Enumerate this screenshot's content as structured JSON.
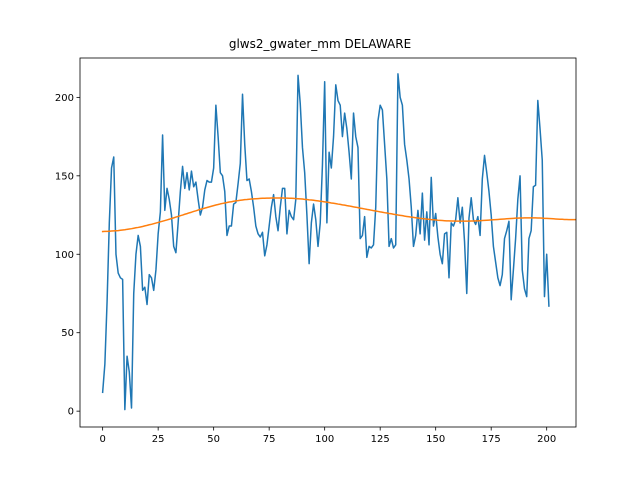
{
  "chart_data": {
    "type": "line",
    "title": "glws2_gwater_mm DELAWARE",
    "xlabel": "",
    "ylabel": "",
    "xlim": [
      -10.2,
      213.2
    ],
    "ylim": [
      -10.1,
      225.1
    ],
    "xticks": [
      0,
      25,
      50,
      75,
      100,
      125,
      150,
      175,
      200
    ],
    "yticks": [
      0,
      50,
      100,
      150,
      200
    ],
    "grid": false,
    "series": [
      {
        "color": "#1f77b4",
        "values": [
          12,
          30,
          70,
          120,
          155,
          162,
          100,
          88,
          85,
          84,
          1,
          35,
          25,
          2,
          75,
          100,
          112,
          105,
          77,
          79,
          68,
          87,
          85,
          77,
          90,
          113,
          127,
          176,
          128,
          142,
          135,
          125,
          105,
          101,
          120,
          140,
          156,
          142,
          152,
          141,
          153,
          143,
          146,
          135,
          125,
          130,
          141,
          147,
          146,
          146,
          155,
          195,
          175,
          152,
          150,
          140,
          112,
          118,
          118,
          132,
          133,
          145,
          158,
          202,
          170,
          147,
          148,
          140,
          130,
          118,
          113,
          111,
          114,
          99,
          106,
          118,
          130,
          138,
          124,
          115,
          130,
          142,
          142,
          113,
          128,
          124,
          122,
          135,
          214,
          196,
          168,
          152,
          125,
          94,
          120,
          132,
          122,
          105,
          120,
          157,
          210,
          120,
          165,
          155,
          175,
          208,
          198,
          195,
          175,
          190,
          180,
          165,
          148,
          190,
          175,
          168,
          110,
          112,
          124,
          98,
          105,
          104,
          106,
          130,
          185,
          195,
          192,
          170,
          148,
          105,
          110,
          104,
          106,
          215,
          200,
          195,
          170,
          160,
          148,
          130,
          105,
          112,
          128,
          113,
          139,
          109,
          127,
          106,
          149,
          118,
          126,
          111,
          100,
          94,
          113,
          114,
          85,
          120,
          118,
          122,
          136,
          120,
          130,
          108,
          75,
          123,
          136,
          122,
          119,
          124,
          112,
          148,
          163,
          152,
          140,
          125,
          105,
          95,
          85,
          80,
          87,
          110,
          115,
          121,
          71,
          90,
          110,
          135,
          150,
          90,
          78,
          73,
          110,
          115,
          143,
          144,
          198,
          180,
          160,
          73,
          100,
          67
        ],
        "x_start": 0
      },
      {
        "color": "#ff7f0e",
        "values": [
          114.5,
          114.6,
          114.6,
          114.7,
          114.8,
          114.9,
          115.0,
          115.1,
          115.3,
          115.5,
          115.6,
          115.9,
          116.1,
          116.3,
          116.6,
          116.9,
          117.1,
          117.4,
          117.7,
          118.1,
          118.4,
          118.8,
          119.1,
          119.5,
          119.9,
          120.3,
          120.7,
          121.1,
          121.5,
          121.9,
          122.3,
          122.8,
          123.2,
          123.7,
          124.1,
          124.6,
          125.0,
          125.5,
          125.9,
          126.4,
          126.8,
          127.3,
          127.7,
          128.2,
          128.6,
          129.0,
          129.4,
          129.8,
          130.2,
          130.6,
          131.0,
          131.4,
          131.7,
          132.1,
          132.4,
          132.7,
          133.0,
          133.3,
          133.5,
          133.8,
          134.0,
          134.2,
          134.4,
          134.6,
          134.8,
          134.9,
          135.1,
          135.2,
          135.3,
          135.4,
          135.5,
          135.6,
          135.7,
          135.7,
          135.8,
          135.8,
          135.9,
          135.9,
          135.9,
          135.9,
          135.9,
          135.9,
          135.8,
          135.8,
          135.7,
          135.7,
          135.6,
          135.5,
          135.4,
          135.3,
          135.2,
          135.0,
          134.9,
          134.7,
          134.6,
          134.4,
          134.2,
          134.0,
          133.8,
          133.6,
          133.4,
          133.2,
          133.0,
          132.7,
          132.5,
          132.3,
          132.0,
          131.8,
          131.5,
          131.3,
          131.0,
          130.8,
          130.5,
          130.2,
          130.0,
          129.7,
          129.4,
          129.2,
          128.9,
          128.6,
          128.4,
          128.1,
          127.8,
          127.6,
          127.3,
          127.0,
          126.8,
          126.5,
          126.3,
          126.0,
          125.8,
          125.5,
          125.3,
          125.0,
          124.8,
          124.6,
          124.3,
          124.1,
          123.9,
          123.7,
          123.5,
          123.3,
          123.1,
          122.9,
          122.7,
          122.6,
          122.4,
          122.3,
          122.1,
          122.0,
          121.9,
          121.7,
          121.6,
          121.5,
          121.4,
          121.3,
          121.3,
          121.2,
          121.2,
          121.1,
          121.1,
          121.1,
          121.1,
          121.1,
          121.1,
          121.1,
          121.2,
          121.2,
          121.3,
          121.3,
          121.4,
          121.5,
          121.6,
          121.7,
          121.8,
          121.9,
          122.0,
          122.1,
          122.2,
          122.3,
          122.4,
          122.5,
          122.6,
          122.7,
          122.8,
          122.9,
          123.0,
          123.0,
          123.1,
          123.1,
          123.2,
          123.2,
          123.2,
          123.2,
          123.2,
          123.2,
          123.1,
          123.1,
          123.0,
          122.9,
          122.9,
          122.8,
          122.7,
          122.6,
          122.5,
          122.4,
          122.3,
          122.3,
          122.2,
          122.2,
          122.1,
          122.1,
          122.1,
          122.1,
          122.2,
          122.2
        ],
        "x_start": 0
      }
    ]
  }
}
